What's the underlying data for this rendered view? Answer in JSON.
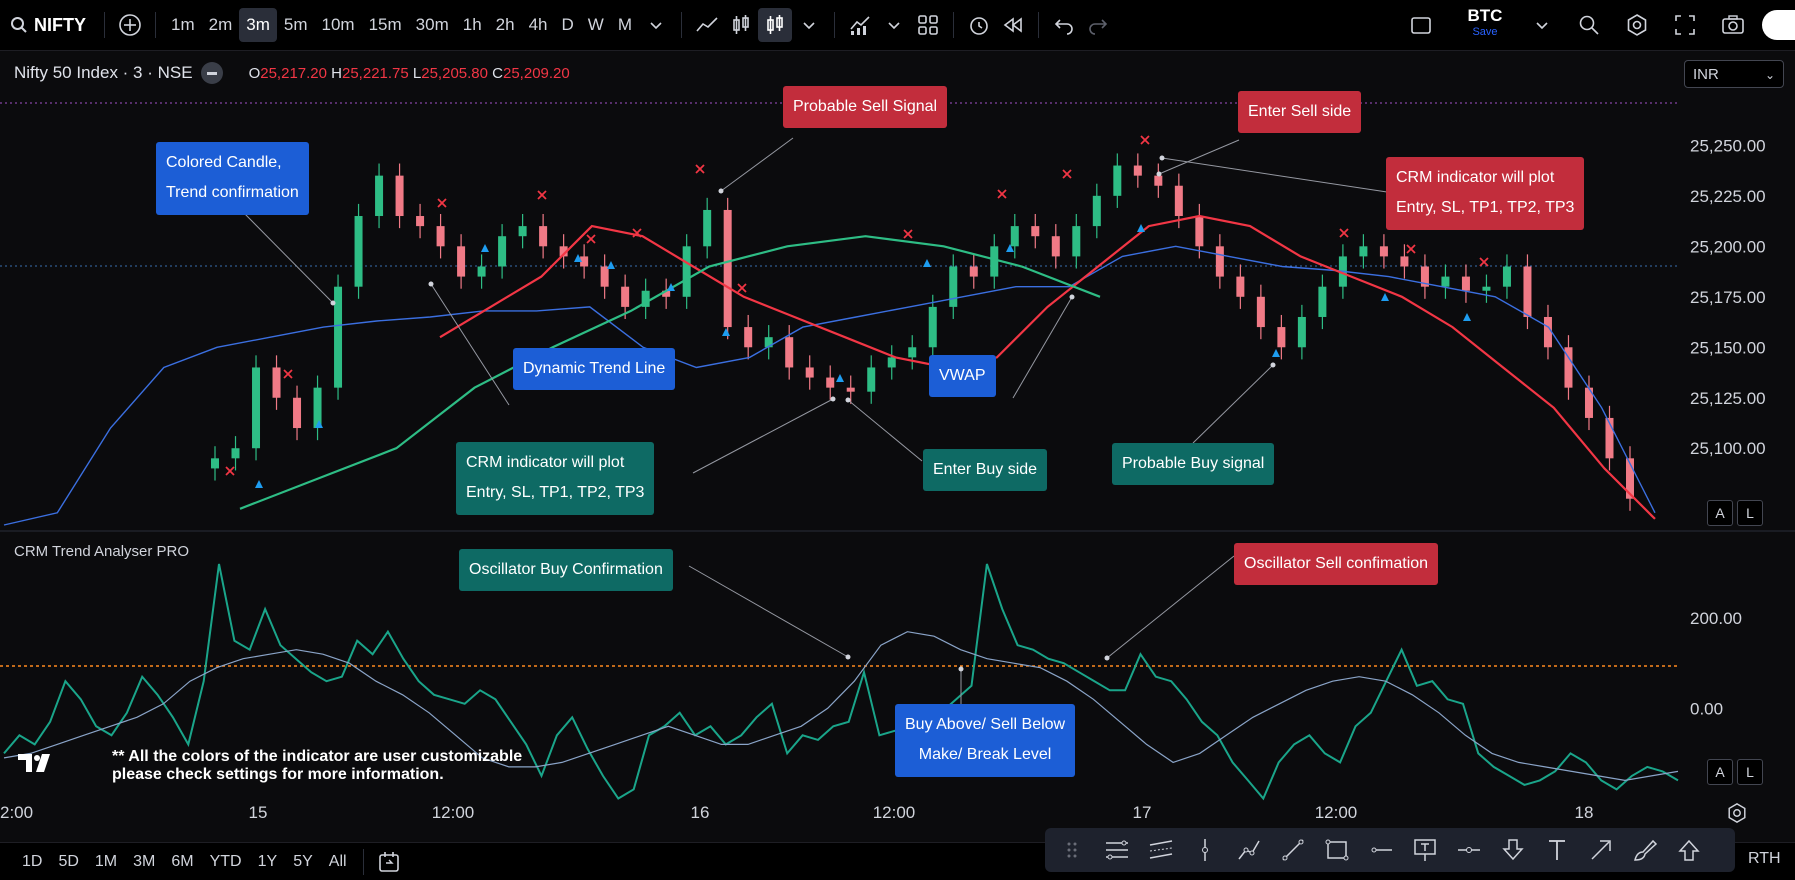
{
  "topbar": {
    "symbol": "NIFTY",
    "intervals": [
      "1m",
      "2m",
      "3m",
      "5m",
      "10m",
      "15m",
      "30m",
      "1h",
      "2h",
      "4h",
      "D",
      "W",
      "M"
    ],
    "active_interval": "3m",
    "btc_name": "BTC",
    "btc_sub": "Save"
  },
  "legend": {
    "title": "Nifty 50 Index · 3 · NSE",
    "o_label": "O",
    "o_value": "25,217.20",
    "h_label": "H",
    "h_value": "25,221.75",
    "l_label": "L",
    "l_value": "25,205.80",
    "c_label": "C",
    "c_value": "25,209.20"
  },
  "currency": "INR",
  "oscillator_title": "CRM Trend Analyser PRO",
  "note": "** All the colors of the indicator are user customizable\nplease check settings for more information.",
  "annotations": {
    "colored_candle": [
      "Colored Candle,",
      "Trend confirmation"
    ],
    "dynamic_trend": "Dynamic  Trend  Line",
    "crm_buy": [
      "CRM indicator will plot",
      "Entry,  SL,  TP1,  TP2,  TP3"
    ],
    "enter_buy": "Enter Buy side",
    "vwap": "VWAP",
    "probable_sell": "Probable Sell Signal",
    "enter_sell": "Enter Sell side",
    "crm_sell": [
      "CRM indicator will plot",
      "Entry,  SL,  TP1,  TP2,  TP3"
    ],
    "probable_buy": "Probable Buy signal",
    "osc_buy": "Oscillator Buy Confirmation",
    "osc_sell": "Oscillator  Sell confimation",
    "make_break": [
      "Buy Above/ Sell Below",
      "Make/ Break Level"
    ]
  },
  "bottombar": {
    "ranges": [
      "1D",
      "5D",
      "1M",
      "3M",
      "6M",
      "YTD",
      "1Y",
      "5Y",
      "All"
    ],
    "rth": "RTH"
  },
  "al_buttons": [
    "A",
    "L"
  ],
  "chart_data": [
    {
      "type": "candlestick",
      "title": "Nifty 50 Index · 3 · NSE",
      "x_ticks": [
        "2:00",
        "15",
        "12:00",
        "16",
        "12:00",
        "17",
        "12:00",
        "18"
      ],
      "y_ticks": [
        25100,
        25125,
        25150,
        25175,
        25200,
        25225,
        25250
      ],
      "ylim": [
        25060,
        25268
      ],
      "series": [
        {
          "name": "",
          "color": "#2ebd85",
          "values": [
            25095,
            25100,
            25140,
            25125,
            25110,
            25130,
            25180,
            25215,
            25235,
            25215,
            25210,
            25200,
            25185,
            25190,
            25205,
            25210,
            25200,
            25195,
            25190,
            25180,
            25170,
            25178,
            25175,
            25200,
            25218,
            25160,
            25150,
            25155,
            25140,
            25135,
            25130,
            25128,
            25140,
            25145,
            25150,
            25170,
            25190,
            25185,
            25200,
            25210,
            25205,
            25195,
            25210,
            25225,
            25240,
            25235,
            25230,
            25215,
            25200,
            25185,
            25175,
            25160,
            25150,
            25165,
            25180,
            25195,
            25200,
            25195,
            25190,
            25180,
            25185,
            25178,
            25180,
            25190,
            25165,
            25150,
            25130,
            25115,
            25095,
            25075
          ]
        },
        {
          "name": "",
          "color": "#f23645",
          "values": [
            25155,
            25170,
            25185,
            25210,
            25205,
            25190,
            25175,
            25165,
            25155,
            25145,
            25140,
            25145,
            25170,
            25190,
            25210,
            25215,
            25210,
            25195,
            25185,
            25175,
            25160,
            25140,
            25120,
            25090,
            25065
          ]
        },
        {
          "name": "",
          "color": "#2ebd85",
          "values": [
            25070,
            25085,
            25100,
            25130,
            25150,
            25168,
            25190,
            25200,
            25205,
            25200,
            25190,
            25175
          ]
        },
        {
          "name": "",
          "color": "#3b6fe0",
          "values": [
            25062,
            25068,
            25110,
            25140,
            25150,
            25155,
            25160,
            25163,
            25165,
            25168,
            25168,
            25170,
            25150,
            25140,
            25145,
            25160,
            25165,
            25170,
            25175,
            25180,
            25180,
            25195,
            25200,
            25195,
            25190,
            25188,
            25185,
            25180,
            25175,
            25160,
            25120,
            25068
          ]
        }
      ]
    },
    {
      "type": "line",
      "title": "CRM Trend Analyser PRO",
      "y_ticks": [
        0,
        200
      ],
      "ylim": [
        -250,
        360
      ],
      "series": [
        {
          "name": "",
          "color": "#1aa58a",
          "values": [
            -100,
            -60,
            -80,
            -30,
            60,
            20,
            -40,
            -60,
            -10,
            70,
            30,
            -20,
            -80,
            60,
            320,
            150,
            130,
            220,
            140,
            110,
            80,
            60,
            70,
            150,
            120,
            170,
            110,
            60,
            30,
            20,
            10,
            40,
            20,
            -30,
            -80,
            -150,
            -60,
            -20,
            -90,
            -150,
            -200,
            -180,
            -60,
            -40,
            -10,
            -60,
            -40,
            -80,
            -60,
            -20,
            10,
            -100,
            -60,
            -70,
            -40,
            -30,
            80,
            -60,
            -50,
            -60,
            -40,
            -10,
            20,
            50,
            320,
            220,
            140,
            130,
            110,
            100,
            80,
            60,
            40,
            40,
            120,
            70,
            60,
            20,
            -30,
            -60,
            -120,
            -160,
            -200,
            -120,
            -80,
            -60,
            -100,
            -120,
            -40,
            -10,
            60,
            130,
            50,
            60,
            20,
            10,
            -100,
            -130,
            -150,
            -170,
            -160,
            -140,
            -100,
            -120,
            -160,
            -180,
            -150,
            -130,
            -140,
            -160
          ]
        },
        {
          "name": "",
          "color": "#8aa4c8",
          "values": [
            -110,
            -100,
            -80,
            -60,
            -40,
            -20,
            10,
            60,
            90,
            110,
            120,
            130,
            120,
            100,
            60,
            30,
            -10,
            -60,
            -110,
            -130,
            -130,
            -120,
            -100,
            -80,
            -60,
            -40,
            -60,
            -80,
            -80,
            -60,
            -40,
            0,
            60,
            140,
            170,
            160,
            130,
            110,
            100,
            90,
            60,
            20,
            -30,
            -80,
            -120,
            -100,
            -60,
            -20,
            10,
            40,
            60,
            70,
            60,
            30,
            -10,
            -60,
            -100,
            -120,
            -130,
            -140,
            -150,
            -160,
            -150,
            -140
          ]
        }
      ]
    }
  ]
}
